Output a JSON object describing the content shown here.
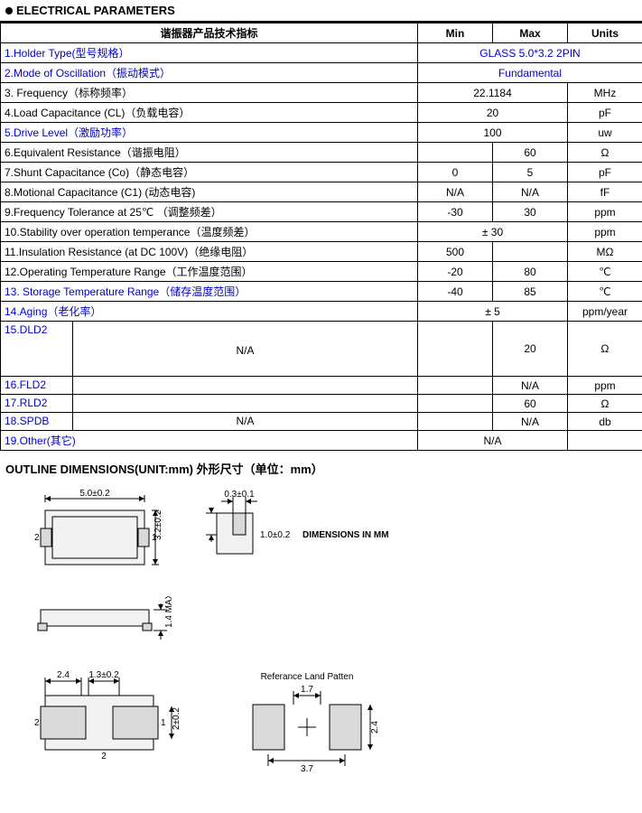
{
  "section_title": "ELECTRICAL PARAMETERS",
  "header": {
    "param": "谐振器产品技术指标",
    "min": "Min",
    "max": "Max",
    "units": "Units"
  },
  "rows": [
    {
      "no": "1",
      "label": "1.Holder Type(型号规格）",
      "span": "GLASS 5.0*3.2 2PIN",
      "blue": true
    },
    {
      "no": "2",
      "label": "2.Mode of Oscillation（振动模式）",
      "span": "Fundamental",
      "blue": true
    },
    {
      "no": "3",
      "label": "3. Frequency（标称频率）",
      "minmax": "22.1184",
      "units": "MHz"
    },
    {
      "no": "4",
      "label": "4.Load Capacitance (CL)（负载电容）",
      "minmax": "20",
      "units": "pF"
    },
    {
      "no": "5",
      "label": "5.Drive Level（激励功率）",
      "minmax": "100",
      "units": "uw",
      "blue": true
    },
    {
      "no": "6",
      "label": "6.Equivalent Resistance（谐振电阻）",
      "min": "",
      "max": "60",
      "units": "Ω"
    },
    {
      "no": "7",
      "label": "7.Shunt Capacitance (Co)（静态电容）",
      "min": "0",
      "max": "5",
      "units": "pF"
    },
    {
      "no": "8",
      "label": "8.Motional Capacitance (C1) (动态电容)",
      "min": "N/A",
      "max": "N/A",
      "units": "fF"
    },
    {
      "no": "9",
      "label": "9.Frequency Tolerance at 25℃ （调整频差）",
      "min": "-30",
      "max": "30",
      "units": "ppm"
    },
    {
      "no": "10",
      "label": "10.Stability over operation temperance（温度频差）",
      "minmax": "± 30",
      "units": "ppm"
    },
    {
      "no": "11",
      "label": "11.Insulation Resistance (at DC 100V)（绝缘电阻）",
      "min": "500",
      "max": "",
      "units": "MΩ"
    },
    {
      "no": "12",
      "label": "12.Operating Temperature Range（工作温度范围）",
      "min": "-20",
      "max": "80",
      "units": "℃"
    },
    {
      "no": "13",
      "label": "13. Storage Temperature Range（储存温度范围）",
      "min": "-40",
      "max": "85",
      "units": "℃",
      "blue": true
    },
    {
      "no": "14",
      "label": "14.Aging（老化率）",
      "minmax": "± 5",
      "units": "ppm/year",
      "blue": true
    },
    {
      "no": "15",
      "label_narrow": "15.DLD2",
      "label_wide": "",
      "min": "",
      "max": "20",
      "units": "Ω",
      "blue": true,
      "split": true,
      "rowspan_wide": 3,
      "wide_text": "N/A"
    },
    {
      "no": "16",
      "label_narrow": "16.FLD2",
      "min": "",
      "max": "N/A",
      "units": "ppm",
      "blue": true,
      "split": true,
      "skip_wide": true
    },
    {
      "no": "17",
      "label_narrow": "17.RLD2",
      "min": "",
      "max": "60",
      "units": "Ω",
      "blue": true,
      "split": true,
      "skip_wide": true
    },
    {
      "no": "18",
      "label_narrow": "18.SPDB",
      "label_wide": "N/A",
      "min": "",
      "max": "N/A",
      "units": "db",
      "blue": true,
      "split": true
    },
    {
      "no": "19",
      "label": "19.Other(其它)",
      "minmax": "N/A",
      "units": "",
      "blue": true
    }
  ],
  "outline_title": "OUTLINE DIMENSIONS(UNIT:mm)  外形尺寸（单位：mm）",
  "dims": {
    "top_w": "5.0±0.2",
    "top_h": "3.2±0.2",
    "lead_w": "0.3±0.1",
    "lead_h": "1.0±0.2",
    "dim_in_mm": "DIMENSIONS IN MM",
    "side_h": "1.4 MAX",
    "bot_pad": "2.4",
    "bot_gap": "1.3±0.2",
    "bot_h": "2±0.2",
    "land_title": "Referance Land  Patten",
    "land_w": "1.7",
    "land_h": "2.4",
    "land_total": "3.7"
  },
  "colors": {
    "text": "#000000",
    "blue": "#0000cc",
    "fill_gray": "#d9d9d9",
    "fill_light": "#f2f2f2"
  }
}
